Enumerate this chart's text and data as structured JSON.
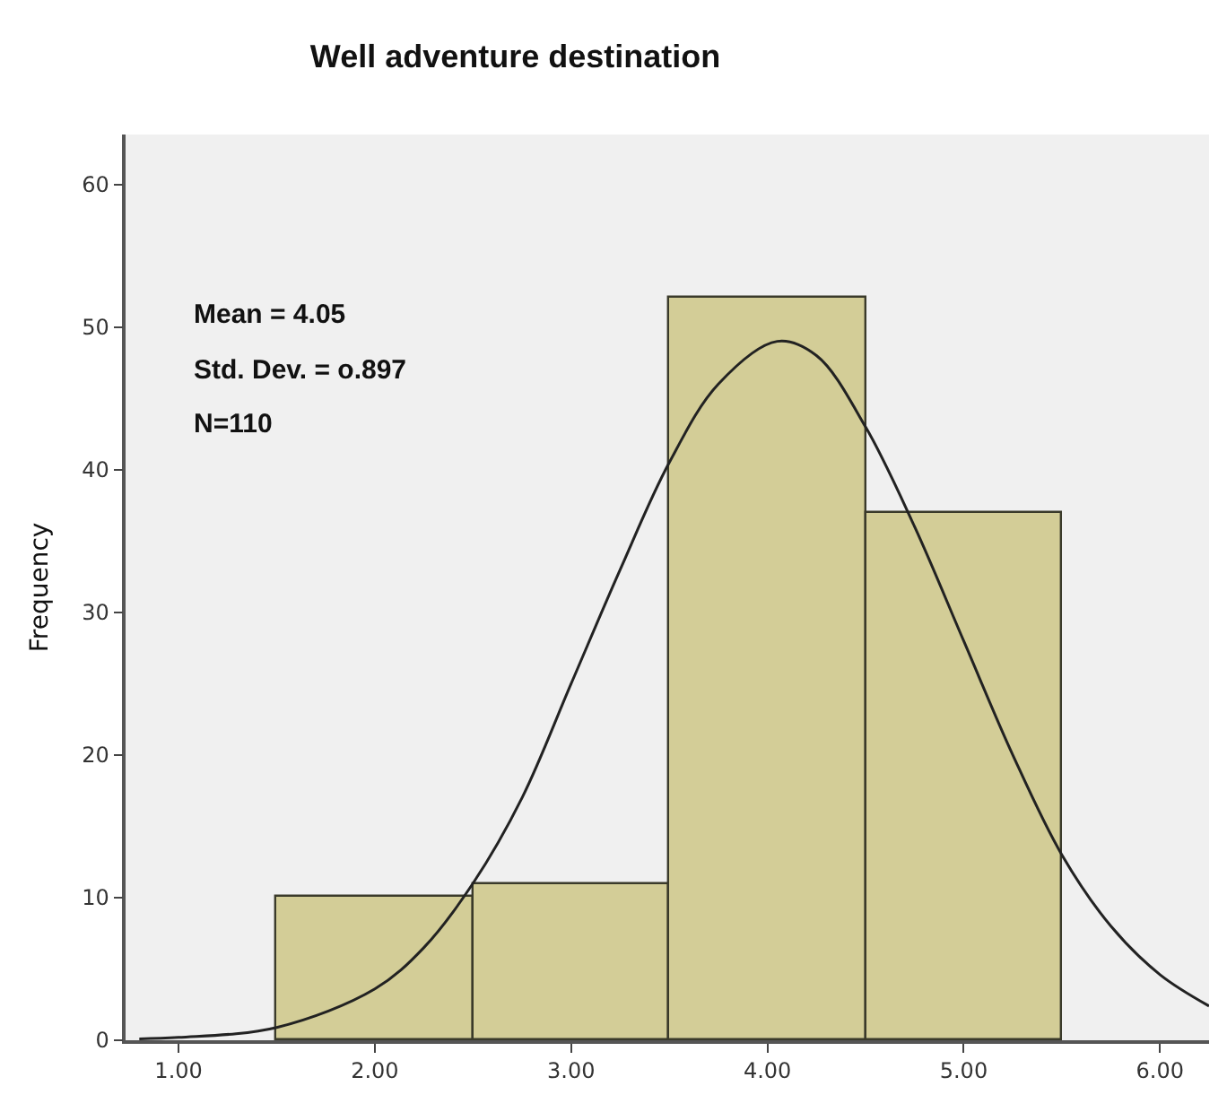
{
  "chart_data": {
    "type": "histogram",
    "title": "Well adventure destination",
    "ylabel": "Frequency",
    "bins": [
      1.5,
      2.5,
      3.5,
      4.5,
      5.5
    ],
    "values": [
      10,
      11,
      52,
      37
    ],
    "color": "#d3cd97",
    "series": [
      {
        "type": "line",
        "color": "#222222",
        "x": [
          0.8,
          1.0,
          1.5,
          2.0,
          2.25,
          2.5,
          2.75,
          3.0,
          3.25,
          3.5,
          3.75,
          4.05,
          4.25,
          4.5,
          4.75,
          5.0,
          5.25,
          5.5,
          5.75,
          6.0,
          6.25
        ],
        "values": [
          0.1,
          0.2,
          0.9,
          3.6,
          6.5,
          11,
          17,
          25,
          33,
          40.5,
          46,
          49,
          48,
          43,
          36,
          28,
          20,
          13,
          8,
          4.6,
          2.4
        ]
      }
    ],
    "xlim": [
      0.73,
      6.25
    ],
    "xticks": [
      {
        "value": 1,
        "label": "1.00"
      },
      {
        "value": 2,
        "label": "2.00"
      },
      {
        "value": 3,
        "label": "3.00"
      },
      {
        "value": 4,
        "label": "4.00"
      },
      {
        "value": 5,
        "label": "5.00"
      },
      {
        "value": 6,
        "label": "6.00"
      }
    ],
    "ylim": [
      0,
      63.5
    ],
    "yticks": [
      0,
      10,
      20,
      30,
      40,
      50,
      60
    ],
    "annotations": [
      "Mean = 4.05",
      "Std. Dev. = o.897",
      "N=110"
    ],
    "grid": false
  }
}
